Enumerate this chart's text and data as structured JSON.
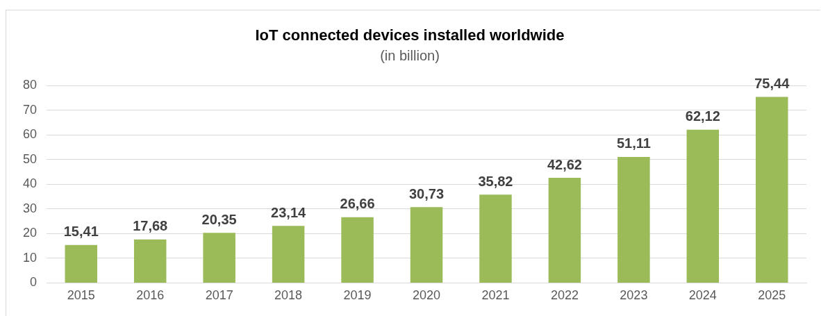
{
  "chart_data": {
    "type": "bar",
    "title": "IoT connected devices installed worldwide",
    "subtitle": "(in billion)",
    "categories": [
      "2015",
      "2016",
      "2017",
      "2018",
      "2019",
      "2020",
      "2021",
      "2022",
      "2023",
      "2024",
      "2025"
    ],
    "values": [
      15.41,
      17.68,
      20.35,
      23.14,
      26.66,
      30.73,
      35.82,
      42.62,
      51.11,
      62.12,
      75.44
    ],
    "value_labels": [
      "15,41",
      "17,68",
      "20,35",
      "23,14",
      "26,66",
      "30,73",
      "35,82",
      "42,62",
      "51,11",
      "62,12",
      "75,44"
    ],
    "color": "#9bbb59",
    "ylim": [
      0,
      80
    ],
    "yticks": [
      0,
      10,
      20,
      30,
      40,
      50,
      60,
      70,
      80
    ],
    "grid": "y",
    "legend": false
  }
}
